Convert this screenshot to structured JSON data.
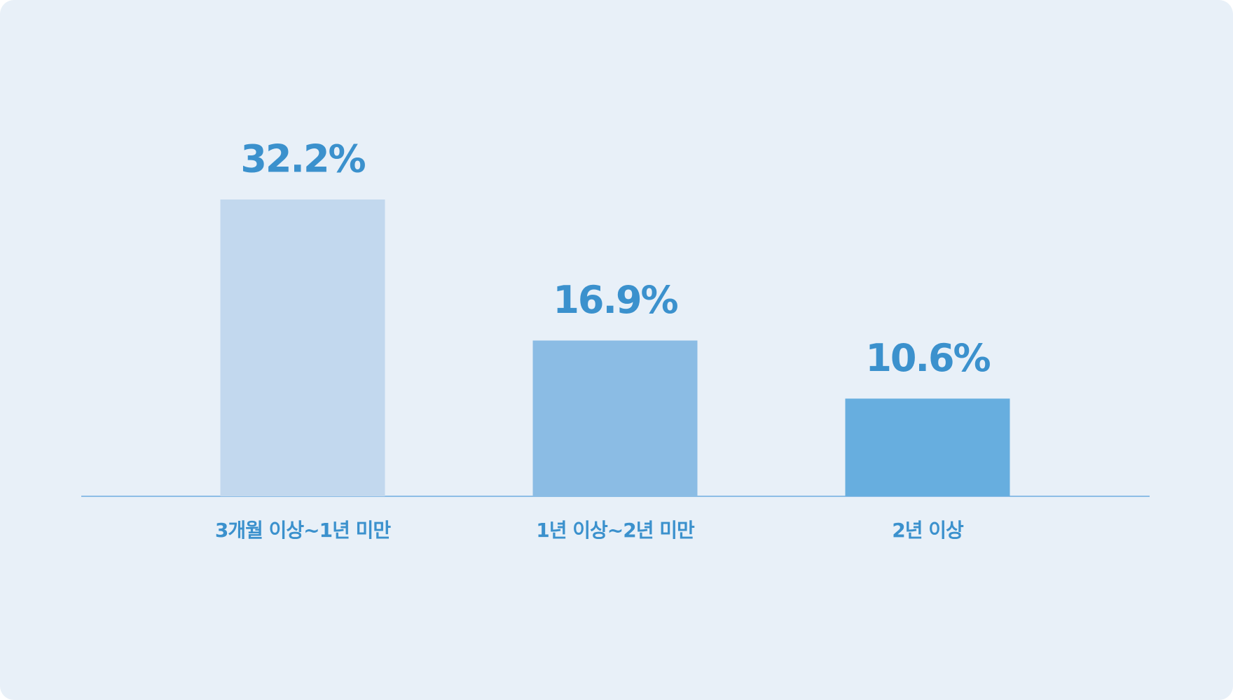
{
  "chart_data": {
    "type": "bar",
    "categories": [
      "3개월 이상~1년 미만",
      "1년 이상~2년 미만",
      "2년 이상"
    ],
    "values": [
      32.2,
      16.9,
      10.6
    ],
    "value_labels": [
      "32.2%",
      "16.9%",
      "10.6%"
    ],
    "colors": [
      "#c2d8ee",
      "#8bbce4",
      "#67aedf"
    ]
  }
}
